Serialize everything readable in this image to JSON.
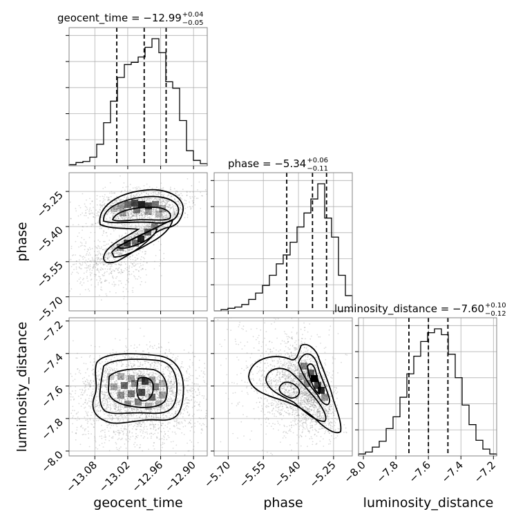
{
  "chart_data": {
    "type": "corner",
    "parameters": [
      "geocent_time",
      "phase",
      "luminosity_distance"
    ],
    "ranges": {
      "geocent_time": [
        -13.127,
        -12.875
      ],
      "phase": [
        -5.76,
        -5.17
      ],
      "luminosity_distance": [
        -8.03,
        -7.18
      ]
    },
    "ticks": {
      "geocent_time": [
        -13.08,
        -13.02,
        -12.96,
        -12.9
      ],
      "phase": [
        -5.7,
        -5.55,
        -5.4,
        -5.25
      ],
      "luminosity_distance": [
        -8.0,
        -7.8,
        -7.6,
        -7.4,
        -7.2
      ]
    },
    "tick_labels": {
      "geocent_time": [
        "−13.08",
        "−13.02",
        "−12.96",
        "−12.90"
      ],
      "phase": [
        "−5.70",
        "−5.55",
        "−5.40",
        "−5.25"
      ],
      "luminosity_distance": [
        "−8.0",
        "−7.8",
        "−7.6",
        "−7.4",
        "−7.2"
      ]
    },
    "axis_labels": {
      "geocent_time": "geocent_time",
      "phase": "phase",
      "luminosity_distance": "luminosity_distance"
    },
    "titles": [
      {
        "param": "geocent_time",
        "text": "geocent_time = −12.99",
        "plus": "+0.04",
        "minus": "−0.05"
      },
      {
        "param": "phase",
        "text": "phase = −5.34",
        "plus": "+0.06",
        "minus": "−0.11"
      },
      {
        "param": "luminosity_distance",
        "text": "luminosity_distance = −7.60",
        "plus": "+0.10",
        "minus": "−0.12"
      }
    ],
    "quantiles": {
      "geocent_time": [
        -13.04,
        -12.99,
        -12.95
      ],
      "phase": [
        -5.45,
        -5.34,
        -5.28
      ],
      "luminosity_distance": [
        -7.72,
        -7.6,
        -7.48
      ]
    },
    "histograms": {
      "geocent_time": {
        "edges_start": -13.127,
        "bin_width": 0.0126,
        "counts": [
          1,
          3,
          4,
          8,
          20,
          40,
          60,
          82,
          94,
          96,
          101,
          110,
          118,
          105,
          78,
          72,
          42,
          14,
          5,
          2
        ]
      },
      "phase": {
        "edges_start": -5.76,
        "bin_width": 0.0295,
        "counts": [
          0,
          1,
          2,
          3,
          5,
          9,
          14,
          20,
          28,
          37,
          44,
          54,
          66,
          77,
          88,
          100,
          73,
          58,
          28,
          12
        ]
      },
      "luminosity_distance": {
        "edges_start": -8.03,
        "bin_width": 0.0425,
        "counts": [
          2,
          4,
          9,
          15,
          28,
          40,
          60,
          84,
          102,
          117,
          126,
          130,
          124,
          104,
          80,
          52,
          32,
          16,
          7,
          2
        ]
      }
    },
    "grid": true
  }
}
